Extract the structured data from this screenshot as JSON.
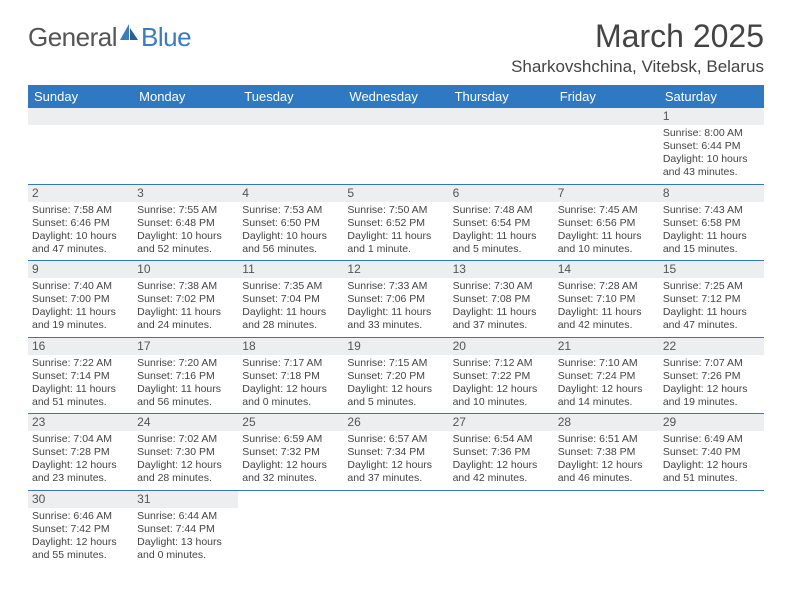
{
  "logo": {
    "textA": "General",
    "textB": "Blue"
  },
  "title": "March 2025",
  "location": "Sharkovshchina, Vitebsk, Belarus",
  "colors": {
    "headerBlue": "#2f78c2",
    "logoBlue": "#3b7bbf",
    "dayBg": "#eceeef"
  },
  "dayHeaders": [
    "Sunday",
    "Monday",
    "Tuesday",
    "Wednesday",
    "Thursday",
    "Friday",
    "Saturday"
  ],
  "weeks": [
    [
      null,
      null,
      null,
      null,
      null,
      null,
      {
        "n": "1",
        "sr": "Sunrise: 8:00 AM",
        "ss": "Sunset: 6:44 PM",
        "dl1": "Daylight: 10 hours",
        "dl2": "and 43 minutes."
      }
    ],
    [
      {
        "n": "2",
        "sr": "Sunrise: 7:58 AM",
        "ss": "Sunset: 6:46 PM",
        "dl1": "Daylight: 10 hours",
        "dl2": "and 47 minutes."
      },
      {
        "n": "3",
        "sr": "Sunrise: 7:55 AM",
        "ss": "Sunset: 6:48 PM",
        "dl1": "Daylight: 10 hours",
        "dl2": "and 52 minutes."
      },
      {
        "n": "4",
        "sr": "Sunrise: 7:53 AM",
        "ss": "Sunset: 6:50 PM",
        "dl1": "Daylight: 10 hours",
        "dl2": "and 56 minutes."
      },
      {
        "n": "5",
        "sr": "Sunrise: 7:50 AM",
        "ss": "Sunset: 6:52 PM",
        "dl1": "Daylight: 11 hours",
        "dl2": "and 1 minute."
      },
      {
        "n": "6",
        "sr": "Sunrise: 7:48 AM",
        "ss": "Sunset: 6:54 PM",
        "dl1": "Daylight: 11 hours",
        "dl2": "and 5 minutes."
      },
      {
        "n": "7",
        "sr": "Sunrise: 7:45 AM",
        "ss": "Sunset: 6:56 PM",
        "dl1": "Daylight: 11 hours",
        "dl2": "and 10 minutes."
      },
      {
        "n": "8",
        "sr": "Sunrise: 7:43 AM",
        "ss": "Sunset: 6:58 PM",
        "dl1": "Daylight: 11 hours",
        "dl2": "and 15 minutes."
      }
    ],
    [
      {
        "n": "9",
        "sr": "Sunrise: 7:40 AM",
        "ss": "Sunset: 7:00 PM",
        "dl1": "Daylight: 11 hours",
        "dl2": "and 19 minutes."
      },
      {
        "n": "10",
        "sr": "Sunrise: 7:38 AM",
        "ss": "Sunset: 7:02 PM",
        "dl1": "Daylight: 11 hours",
        "dl2": "and 24 minutes."
      },
      {
        "n": "11",
        "sr": "Sunrise: 7:35 AM",
        "ss": "Sunset: 7:04 PM",
        "dl1": "Daylight: 11 hours",
        "dl2": "and 28 minutes."
      },
      {
        "n": "12",
        "sr": "Sunrise: 7:33 AM",
        "ss": "Sunset: 7:06 PM",
        "dl1": "Daylight: 11 hours",
        "dl2": "and 33 minutes."
      },
      {
        "n": "13",
        "sr": "Sunrise: 7:30 AM",
        "ss": "Sunset: 7:08 PM",
        "dl1": "Daylight: 11 hours",
        "dl2": "and 37 minutes."
      },
      {
        "n": "14",
        "sr": "Sunrise: 7:28 AM",
        "ss": "Sunset: 7:10 PM",
        "dl1": "Daylight: 11 hours",
        "dl2": "and 42 minutes."
      },
      {
        "n": "15",
        "sr": "Sunrise: 7:25 AM",
        "ss": "Sunset: 7:12 PM",
        "dl1": "Daylight: 11 hours",
        "dl2": "and 47 minutes."
      }
    ],
    [
      {
        "n": "16",
        "sr": "Sunrise: 7:22 AM",
        "ss": "Sunset: 7:14 PM",
        "dl1": "Daylight: 11 hours",
        "dl2": "and 51 minutes."
      },
      {
        "n": "17",
        "sr": "Sunrise: 7:20 AM",
        "ss": "Sunset: 7:16 PM",
        "dl1": "Daylight: 11 hours",
        "dl2": "and 56 minutes."
      },
      {
        "n": "18",
        "sr": "Sunrise: 7:17 AM",
        "ss": "Sunset: 7:18 PM",
        "dl1": "Daylight: 12 hours",
        "dl2": "and 0 minutes."
      },
      {
        "n": "19",
        "sr": "Sunrise: 7:15 AM",
        "ss": "Sunset: 7:20 PM",
        "dl1": "Daylight: 12 hours",
        "dl2": "and 5 minutes."
      },
      {
        "n": "20",
        "sr": "Sunrise: 7:12 AM",
        "ss": "Sunset: 7:22 PM",
        "dl1": "Daylight: 12 hours",
        "dl2": "and 10 minutes."
      },
      {
        "n": "21",
        "sr": "Sunrise: 7:10 AM",
        "ss": "Sunset: 7:24 PM",
        "dl1": "Daylight: 12 hours",
        "dl2": "and 14 minutes."
      },
      {
        "n": "22",
        "sr": "Sunrise: 7:07 AM",
        "ss": "Sunset: 7:26 PM",
        "dl1": "Daylight: 12 hours",
        "dl2": "and 19 minutes."
      }
    ],
    [
      {
        "n": "23",
        "sr": "Sunrise: 7:04 AM",
        "ss": "Sunset: 7:28 PM",
        "dl1": "Daylight: 12 hours",
        "dl2": "and 23 minutes."
      },
      {
        "n": "24",
        "sr": "Sunrise: 7:02 AM",
        "ss": "Sunset: 7:30 PM",
        "dl1": "Daylight: 12 hours",
        "dl2": "and 28 minutes."
      },
      {
        "n": "25",
        "sr": "Sunrise: 6:59 AM",
        "ss": "Sunset: 7:32 PM",
        "dl1": "Daylight: 12 hours",
        "dl2": "and 32 minutes."
      },
      {
        "n": "26",
        "sr": "Sunrise: 6:57 AM",
        "ss": "Sunset: 7:34 PM",
        "dl1": "Daylight: 12 hours",
        "dl2": "and 37 minutes."
      },
      {
        "n": "27",
        "sr": "Sunrise: 6:54 AM",
        "ss": "Sunset: 7:36 PM",
        "dl1": "Daylight: 12 hours",
        "dl2": "and 42 minutes."
      },
      {
        "n": "28",
        "sr": "Sunrise: 6:51 AM",
        "ss": "Sunset: 7:38 PM",
        "dl1": "Daylight: 12 hours",
        "dl2": "and 46 minutes."
      },
      {
        "n": "29",
        "sr": "Sunrise: 6:49 AM",
        "ss": "Sunset: 7:40 PM",
        "dl1": "Daylight: 12 hours",
        "dl2": "and 51 minutes."
      }
    ],
    [
      {
        "n": "30",
        "sr": "Sunrise: 6:46 AM",
        "ss": "Sunset: 7:42 PM",
        "dl1": "Daylight: 12 hours",
        "dl2": "and 55 minutes."
      },
      {
        "n": "31",
        "sr": "Sunrise: 6:44 AM",
        "ss": "Sunset: 7:44 PM",
        "dl1": "Daylight: 13 hours",
        "dl2": "and 0 minutes."
      },
      null,
      null,
      null,
      null,
      null
    ]
  ]
}
